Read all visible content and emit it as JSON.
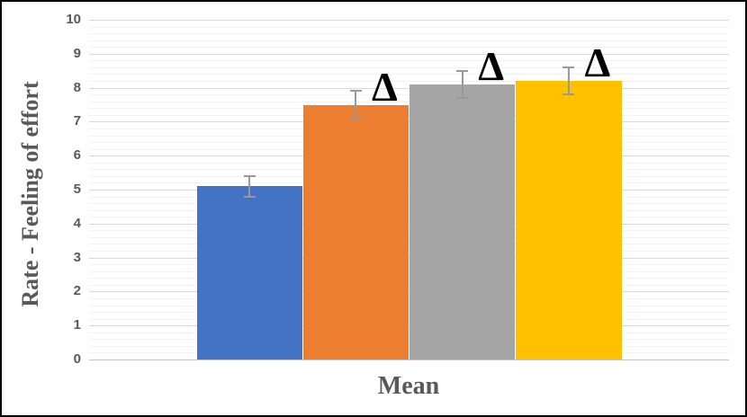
{
  "chart_data": {
    "type": "bar",
    "title": "",
    "categories": [
      "Mean"
    ],
    "xlabel": "Mean",
    "ylabel": "Rate - Feeling of effort",
    "ylim": [
      0,
      10
    ],
    "y_major_tick_step": 1,
    "y_minor_tick_step": 0.2,
    "y_tick_labels": [
      "0",
      "1",
      "2",
      "3",
      "4",
      "5",
      "6",
      "7",
      "8",
      "9",
      "10"
    ],
    "grid": "horizontal major + minor",
    "legend": "none",
    "error_bars": true,
    "series": [
      {
        "color": "#4472C4",
        "value": 5.1,
        "error": 0.3,
        "annotation": ""
      },
      {
        "color": "#ED7D31",
        "value": 7.5,
        "error": 0.4,
        "annotation": "Δ"
      },
      {
        "color": "#A5A5A5",
        "value": 8.1,
        "error": 0.4,
        "annotation": "Δ"
      },
      {
        "color": "#FFC000",
        "value": 8.2,
        "error": 0.4,
        "annotation": "Δ"
      }
    ],
    "colors": {
      "error_bar": "#999999",
      "annotation": "#000000",
      "axis_title": "#595959",
      "tick_label": "#595959",
      "major_grid": "#D9D9D9",
      "minor_grid": "#F2F2F2",
      "baseline": "#C6C6C6",
      "background": "#FFFFFF",
      "frame_border": "#000000"
    }
  }
}
